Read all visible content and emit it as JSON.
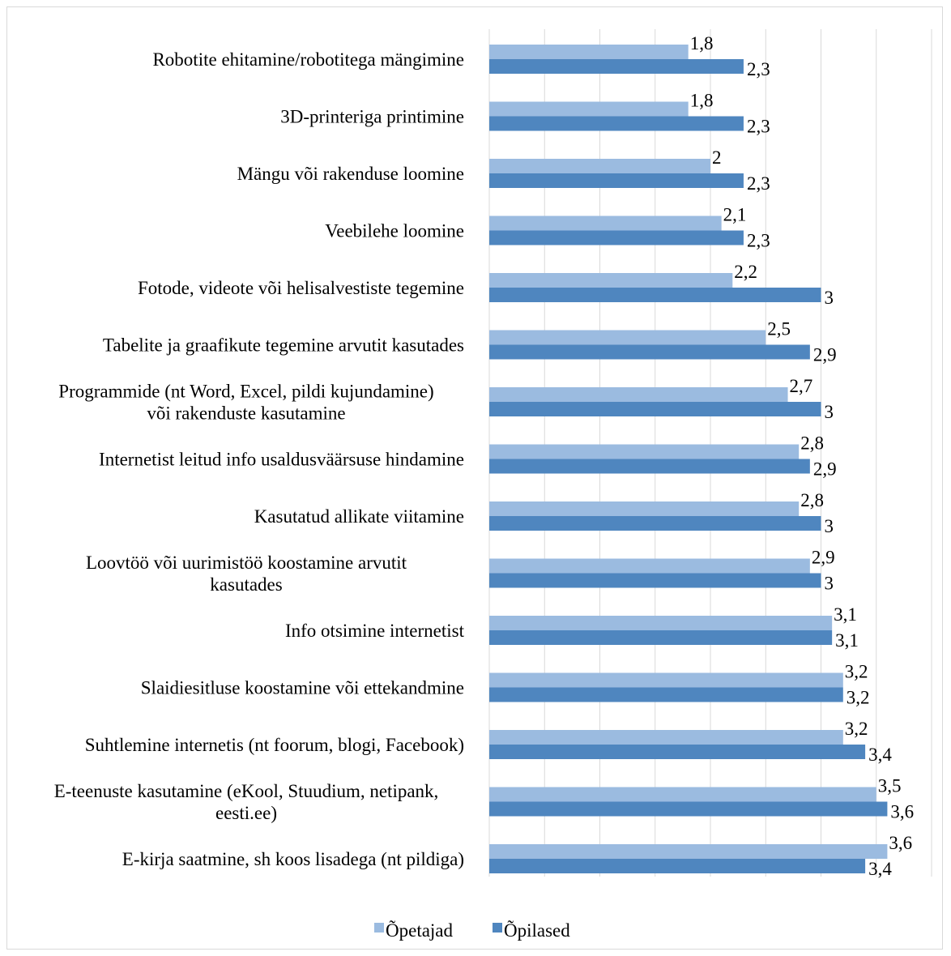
{
  "chart_data": {
    "type": "bar",
    "orientation": "horizontal",
    "categories": [
      "Robotite ehitamine/robotitega mängimine",
      "3D-printeriga printimine",
      "Mängu või rakenduse loomine",
      "Veebilehe loomine",
      "Fotode, videote või helisalvestiste tegemine",
      "Tabelite ja graafikute tegemine arvutit kasutades",
      "Programmide (nt Word, Excel, pildi kujundamine)|või rakenduste kasutamine",
      "Internetist leitud info usaldusväärsuse hindamine",
      "Kasutatud allikate viitamine",
      "Loovtöö või uurimistöö koostamine arvutit|kasutades",
      "Info otsimine internetist",
      "Slaidiesitluse koostamine või ettekandmine",
      "Suhtlemine internetis (nt foorum, blogi, Facebook)",
      "E-teenuste kasutamine (eKool, Stuudium, netipank,|eesti.ee)",
      "E-kirja saatmine, sh koos lisadega (nt pildiga)"
    ],
    "series": [
      {
        "name": "Õpetajad",
        "color": "#9bbbe0",
        "values": [
          1.8,
          1.8,
          2.0,
          2.1,
          2.2,
          2.5,
          2.7,
          2.8,
          2.8,
          2.9,
          3.1,
          3.2,
          3.2,
          3.5,
          3.6
        ],
        "labels": [
          "1,8",
          "1,8",
          "2",
          "2,1",
          "2,2",
          "2,5",
          "2,7",
          "2,8",
          "2,8",
          "2,9",
          "3,1",
          "3,2",
          "3,2",
          "3,5",
          "3,6"
        ]
      },
      {
        "name": "Õpilased",
        "color": "#4f86bf",
        "values": [
          2.3,
          2.3,
          2.3,
          2.3,
          3.0,
          2.9,
          3.0,
          2.9,
          3.0,
          3.0,
          3.1,
          3.2,
          3.4,
          3.6,
          3.4
        ],
        "labels": [
          "2,3",
          "2,3",
          "2,3",
          "2,3",
          "3",
          "2,9",
          "3",
          "2,9",
          "3",
          "3",
          "3,1",
          "3,2",
          "3,4",
          "3,6",
          "3,4"
        ]
      }
    ],
    "xlim": [
      0,
      4
    ],
    "grid": true,
    "legend_position": "bottom"
  }
}
